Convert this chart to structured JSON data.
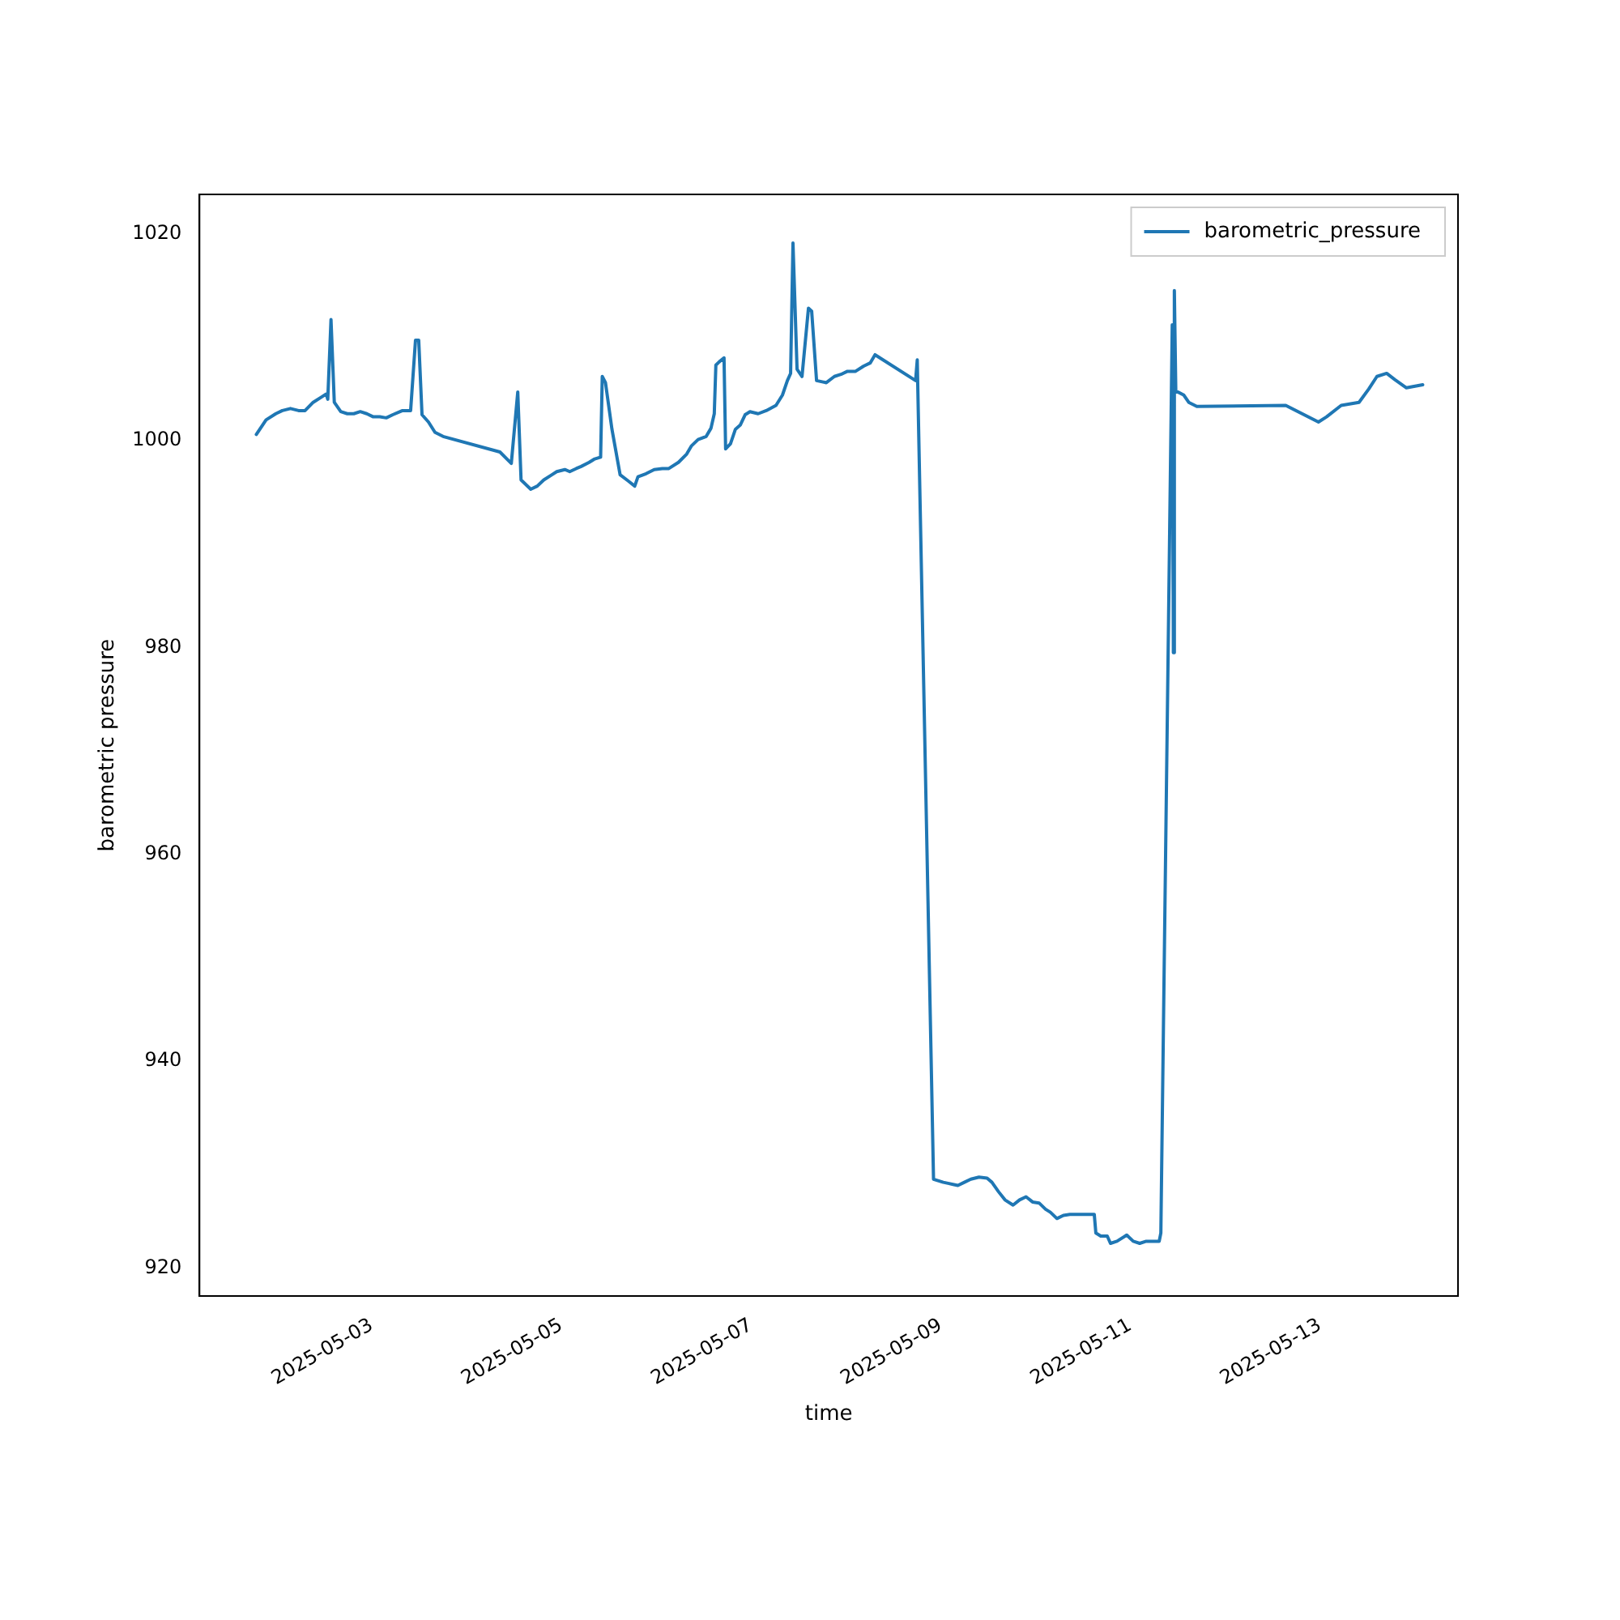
{
  "chart_data": {
    "type": "line",
    "xlabel": "time",
    "ylabel": "barometric pressure",
    "x": [
      "2025-05-01T18:49",
      "2025-05-01T21:17",
      "2025-05-01T23:45",
      "2025-05-02T01:24",
      "2025-05-02T03:27",
      "2025-05-02T05:30",
      "2025-05-02T07:09",
      "2025-05-02T09:12",
      "2025-05-02T11:15",
      "2025-05-02T12:30",
      "2025-05-02T12:54",
      "2025-05-02T13:43",
      "2025-05-02T14:33",
      "2025-05-02T16:11",
      "2025-05-02T17:50",
      "2025-05-02T19:29",
      "2025-05-02T21:07",
      "2025-05-02T22:46",
      "2025-05-03T00:25",
      "2025-05-03T02:03",
      "2025-05-03T03:42",
      "2025-05-03T05:21",
      "2025-05-03T07:49",
      "2025-05-03T09:52",
      "2025-05-03T11:06",
      "2025-05-03T11:55",
      "2025-05-03T12:45",
      "2025-05-03T14:23",
      "2025-05-03T16:02",
      "2025-05-03T18:05",
      "2025-05-04T08:28",
      "2025-05-04T11:21",
      "2025-05-04T12:59",
      "2025-05-04T13:49",
      "2025-05-04T16:16",
      "2025-05-04T17:55",
      "2025-05-04T19:34",
      "2025-05-04T21:37",
      "2025-05-04T22:51",
      "2025-05-05T00:54",
      "2025-05-05T02:08",
      "2025-05-05T03:47",
      "2025-05-05T05:01",
      "2025-05-05T07:04",
      "2025-05-05T08:18",
      "2025-05-05T09:57",
      "2025-05-05T10:22",
      "2025-05-05T11:11",
      "2025-05-05T12:49",
      "2025-05-05T14:53",
      "2025-05-05T16:56",
      "2025-05-05T18:35",
      "2025-05-05T19:24",
      "2025-05-05T21:27",
      "2025-05-05T23:31",
      "2025-05-06T01:34",
      "2025-05-06T03:13",
      "2025-05-06T05:40",
      "2025-05-06T07:44",
      "2025-05-06T08:58",
      "2025-05-06T10:37",
      "2025-05-06T12:40",
      "2025-05-06T13:53",
      "2025-05-06T14:43",
      "2025-05-06T15:07",
      "2025-05-06T15:56",
      "2025-05-06T17:11",
      "2025-05-06T17:35",
      "2025-05-06T18:49",
      "2025-05-06T20:04",
      "2025-05-06T21:17",
      "2025-05-06T22:31",
      "2025-05-06T23:45",
      "2025-05-07T01:49",
      "2025-05-07T03:52",
      "2025-05-07T06:20",
      "2025-05-07T07:58",
      "2025-05-07T09:13",
      "2025-05-07T10:02",
      "2025-05-07T10:38",
      "2025-05-07T11:40",
      "2025-05-07T12:55",
      "2025-05-07T14:33",
      "2025-05-07T15:22",
      "2025-05-07T16:36",
      "2025-05-07T19:04",
      "2025-05-07T21:07",
      "2025-05-07T22:46",
      "2025-05-08T00:25",
      "2025-05-08T02:28",
      "2025-05-08T04:31",
      "2025-05-08T06:10",
      "2025-05-08T07:24",
      "2025-05-08T17:40",
      "2025-05-08T18:05",
      "2025-05-08T22:12",
      "2025-05-09T00:40",
      "2025-05-09T01:53",
      "2025-05-09T03:08",
      "2025-05-09T04:22",
      "2025-05-09T06:00",
      "2025-05-09T07:39",
      "2025-05-09T09:42",
      "2025-05-09T11:46",
      "2025-05-09T12:59",
      "2025-05-09T14:38",
      "2025-05-09T16:17",
      "2025-05-09T18:20",
      "2025-05-09T19:58",
      "2025-05-09T21:37",
      "2025-05-09T23:16",
      "2025-05-10T00:55",
      "2025-05-10T02:33",
      "2025-05-10T03:47",
      "2025-05-10T05:26",
      "2025-05-10T07:04",
      "2025-05-10T08:43",
      "2025-05-10T14:53",
      "2025-05-10T15:17",
      "2025-05-10T16:31",
      "2025-05-10T18:10",
      "2025-05-10T18:59",
      "2025-05-10T20:38",
      "2025-05-10T23:06",
      "2025-05-11T00:44",
      "2025-05-11T02:23",
      "2025-05-11T04:02",
      "2025-05-11T05:40",
      "2025-05-11T07:19",
      "2025-05-11T07:44",
      "2025-05-11T10:37",
      "2025-05-11T10:54",
      "2025-05-11T11:09",
      "2025-05-11T11:31",
      "2025-05-11T13:33",
      "2025-05-11T14:47",
      "2025-05-11T16:50",
      "2025-05-12T15:20",
      "2025-05-12T23:37",
      "2025-05-13T01:40",
      "2025-05-13T05:22",
      "2025-05-13T09:53",
      "2025-05-13T12:22",
      "2025-05-13T14:25",
      "2025-05-13T16:53",
      "2025-05-13T18:56",
      "2025-05-13T21:53",
      "2025-05-14T02:00"
    ],
    "series": [
      {
        "name": "barometric_pressure",
        "color": "#1f77b4",
        "values": [
          1000.6,
          1002.0,
          1002.6,
          1002.9,
          1003.1,
          1002.9,
          1002.9,
          1003.7,
          1004.2,
          1004.5,
          1004.0,
          1011.7,
          1003.7,
          1002.8,
          1002.6,
          1002.6,
          1002.8,
          1002.6,
          1002.3,
          1002.3,
          1002.2,
          1002.5,
          1002.9,
          1002.9,
          1009.7,
          1009.7,
          1002.5,
          1001.8,
          1000.8,
          1000.4,
          998.9,
          997.8,
          1004.7,
          996.2,
          995.3,
          995.6,
          996.2,
          996.7,
          997.0,
          997.2,
          997.0,
          997.3,
          997.5,
          997.9,
          998.2,
          998.4,
          1006.2,
          1005.6,
          1001.1,
          996.7,
          996.1,
          995.6,
          996.5,
          996.8,
          997.2,
          997.3,
          997.3,
          997.9,
          998.7,
          999.5,
          1000.1,
          1000.4,
          1001.2,
          1002.6,
          1007.3,
          1007.6,
          1008.0,
          999.2,
          999.7,
          1001.1,
          1001.5,
          1002.5,
          1002.8,
          1002.6,
          1002.9,
          1003.4,
          1004.4,
          1005.8,
          1006.5,
          1019.1,
          1006.9,
          1006.2,
          1012.8,
          1012.5,
          1005.8,
          1005.6,
          1006.2,
          1006.4,
          1006.7,
          1006.7,
          1007.2,
          1007.5,
          1008.3,
          1005.8,
          1007.8,
          928.6,
          928.3,
          928.2,
          928.1,
          928.0,
          928.3,
          928.6,
          928.8,
          928.7,
          928.3,
          927.4,
          926.6,
          926.1,
          926.6,
          926.9,
          926.4,
          926.3,
          925.7,
          925.4,
          924.8,
          925.1,
          925.2,
          925.2,
          923.4,
          923.1,
          923.1,
          922.4,
          922.6,
          923.2,
          922.6,
          922.4,
          922.6,
          922.6,
          922.6,
          923.4,
          1011.2,
          979.5,
          1014.5,
          1004.8,
          1004.4,
          1003.7,
          1003.3,
          1003.4,
          1001.8,
          1002.3,
          1003.4,
          1003.7,
          1005.0,
          1006.2,
          1006.5,
          1005.9,
          1005.1,
          1005.4
        ]
      }
    ],
    "xlim": [
      "2025-05-01T04:26",
      "2025-05-14T10:56"
    ],
    "xticks": [
      "2025-05-03",
      "2025-05-05",
      "2025-05-07",
      "2025-05-09",
      "2025-05-11",
      "2025-05-13"
    ],
    "ylim": [
      917.3,
      1023.8
    ],
    "yticks": [
      920,
      940,
      960,
      980,
      1000,
      1020
    ],
    "legend": "top right",
    "grid": false,
    "marker": "none",
    "line_style": "solid"
  }
}
